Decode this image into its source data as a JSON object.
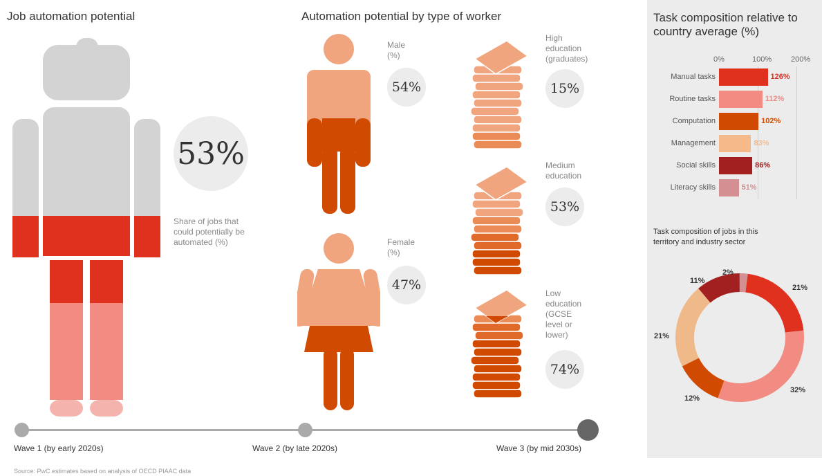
{
  "left": {
    "title": "Job automation potential",
    "value": "53%",
    "caption_lines": [
      "Share of jobs that",
      "could potentially be",
      "automated (%)"
    ]
  },
  "middle": {
    "title": "Automation potential by type of worker",
    "male": {
      "label_lines": [
        "Male",
        "(%)"
      ],
      "value": "54%"
    },
    "female": {
      "label_lines": [
        "Female",
        "(%)"
      ],
      "value": "47%"
    },
    "high": {
      "label_lines": [
        "High",
        "education",
        "(graduates)"
      ],
      "value": "15%"
    },
    "medium": {
      "label_lines": [
        "Medium",
        "education"
      ],
      "value": "53%"
    },
    "low": {
      "label_lines": [
        "Low",
        "education",
        "(GCSE",
        "level or",
        "lower)"
      ],
      "value": "74%"
    }
  },
  "timeline": {
    "wave1": "Wave 1 (by early 2020s)",
    "wave2": "Wave 2 (by late 2020s)",
    "wave3": "Wave 3 (by mid 2030s)"
  },
  "source": "Source: PwC estimates based on analysis of OECD PIAAC data",
  "colors": {
    "grey": "#d3d3d3",
    "red": "#e0301e",
    "pink": "#f28b82",
    "lightpink": "#f5b3ad",
    "orange": "#d04a02",
    "peach": "#eb8c57",
    "tan": "#f0a57e",
    "darkred": "#a32020",
    "rose": "#d48f93"
  },
  "chart_data": [
    {
      "type": "bar",
      "title_lines": [
        "Task composition relative to",
        "country average (%)"
      ],
      "xlim": [
        0,
        200
      ],
      "ticks": [
        "0%",
        "100%",
        "200%"
      ],
      "categories": [
        "Manual tasks",
        "Routine tasks",
        "Computation",
        "Management",
        "Social skills",
        "Literacy skills"
      ],
      "values": [
        126,
        112,
        102,
        83,
        86,
        51
      ],
      "value_labels": [
        "126%",
        "112%",
        "102%",
        "83%",
        "86%",
        "51%"
      ],
      "bar_colors": [
        "#e0301e",
        "#f28b82",
        "#d04a02",
        "#f5b98a",
        "#a32020",
        "#d48f93"
      ],
      "label_colors": [
        "#e0301e",
        "#f28b82",
        "#d04a02",
        "#f5b98a",
        "#a32020",
        "#d48f93"
      ]
    },
    {
      "type": "pie",
      "title_lines": [
        "Task composition of jobs in this",
        "territory and industry sector"
      ],
      "values": [
        21,
        32,
        12,
        21,
        11,
        2
      ],
      "labels": [
        "21%",
        "32%",
        "12%",
        "21%",
        "11%",
        "2%"
      ],
      "colors": [
        "#e0301e",
        "#f28b82",
        "#d04a02",
        "#f0b98a",
        "#a32020",
        "#d48f93"
      ]
    }
  ]
}
